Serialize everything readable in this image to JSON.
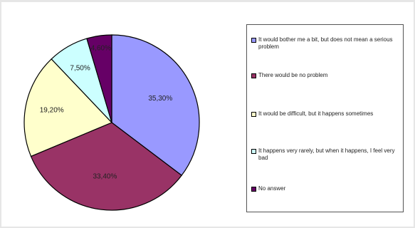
{
  "chart_data": {
    "type": "pie",
    "title": "",
    "slices": [
      {
        "label": "It would bother me a bit, but does not mean a serious problem",
        "value": 35.3,
        "display": "35,30%",
        "color": "#9999ff"
      },
      {
        "label": "There would be no problem",
        "value": 33.4,
        "display": "33,40%",
        "color": "#993366"
      },
      {
        "label": "It would be difficult, but it happens sometimes",
        "value": 19.2,
        "display": "19,20%",
        "color": "#ffffcc"
      },
      {
        "label": "It happens very rarely, but when it happens, I feel very bad",
        "value": 7.5,
        "display": "7,50%",
        "color": "#ccffff"
      },
      {
        "label": "No answer",
        "value": 4.6,
        "display": "4,60%",
        "color": "#660066"
      }
    ],
    "legend": {
      "position": "right"
    }
  }
}
